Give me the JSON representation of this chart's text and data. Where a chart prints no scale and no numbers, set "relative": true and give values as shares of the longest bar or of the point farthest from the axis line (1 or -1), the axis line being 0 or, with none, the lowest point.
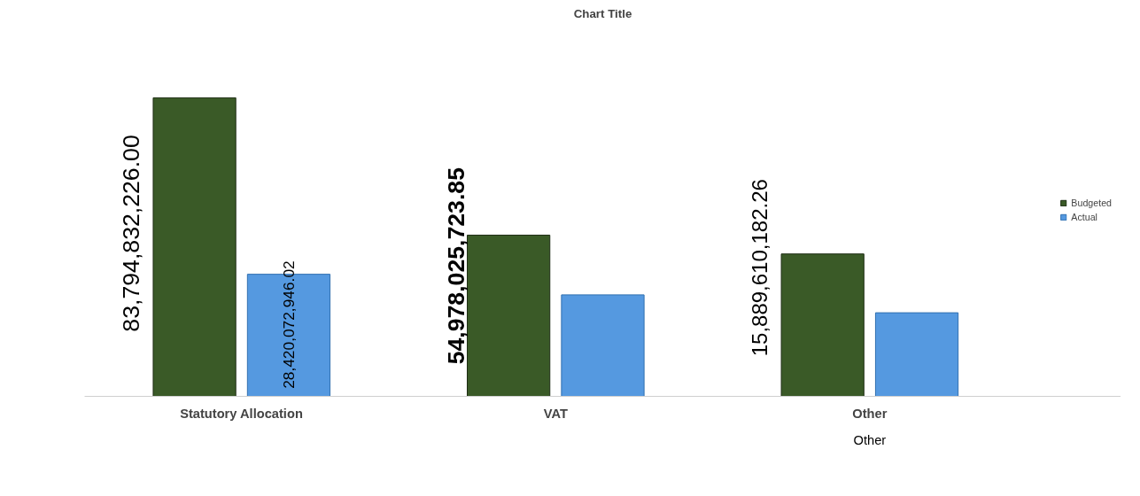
{
  "chart_data": {
    "type": "bar",
    "title": "Chart Title",
    "relative": true,
    "categories": [
      "Statutory Allocation",
      "VAT",
      "Other"
    ],
    "series": [
      {
        "name": "Budgeted",
        "color": "#3a5a27",
        "values": [
          1,
          0.54,
          0.477
        ]
      },
      {
        "name": "Actual",
        "color": "#5599e0",
        "values": [
          0.409,
          0.34,
          0.28
        ]
      }
    ],
    "annotations": [
      "83,794,832,226.00",
      "28,420,072,946.02",
      "54,978,025,723.85",
      "15,889,610,182.26",
      "Other"
    ],
    "legend": "right",
    "grid": false
  }
}
